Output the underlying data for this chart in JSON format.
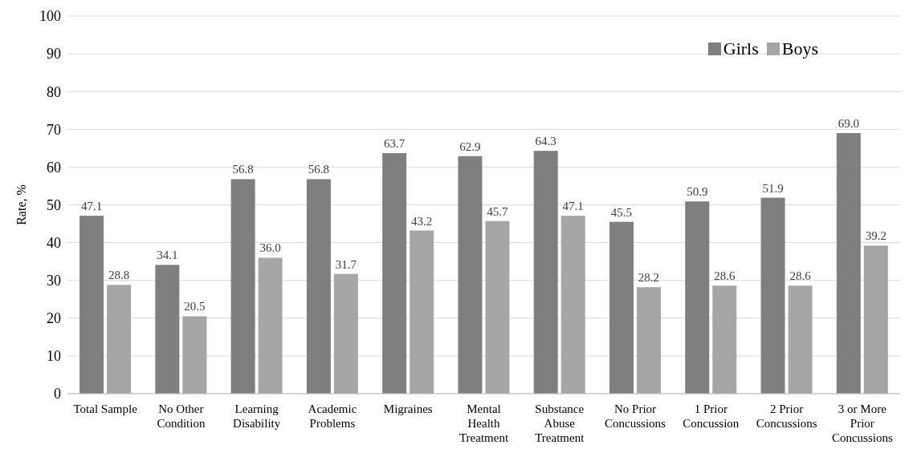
{
  "chart_data": {
    "type": "bar",
    "ylabel": "Rate, %",
    "categories": [
      "Total Sample",
      "No Other Condition",
      "Learning Disability",
      "Academic Problems",
      "Migraines",
      "Mental Health Treatment",
      "Substance Abuse Treatment",
      "No Prior Concussions",
      "1 Prior Concussion",
      "2 Prior Concussions",
      "3 or More Prior Concussions"
    ],
    "series": [
      {
        "name": "Girls",
        "color": "#7f7f7f",
        "values": [
          47.1,
          34.1,
          56.8,
          56.8,
          63.7,
          62.9,
          64.3,
          45.5,
          50.9,
          51.9,
          69.0
        ],
        "value_labels": [
          "47.1",
          "34.1",
          "56.8",
          "56.8",
          "63.7",
          "62.9",
          "64.3",
          "45.5",
          "50.9",
          "51.9",
          "69.0"
        ]
      },
      {
        "name": "Boys",
        "color": "#a6a6a6",
        "values": [
          28.8,
          20.5,
          36.0,
          31.7,
          43.2,
          45.7,
          47.1,
          28.2,
          28.6,
          28.6,
          39.2
        ],
        "value_labels": [
          "28.8",
          "20.5",
          "36.0",
          "31.7",
          "43.2",
          "45.7",
          "47.1",
          "28.2",
          "28.6",
          "28.6",
          "39.2"
        ]
      }
    ],
    "ylim": [
      0,
      100
    ],
    "yticks": [
      0,
      10,
      20,
      30,
      40,
      50,
      60,
      70,
      80,
      90,
      100
    ],
    "grid": "y",
    "legend": "top right"
  }
}
